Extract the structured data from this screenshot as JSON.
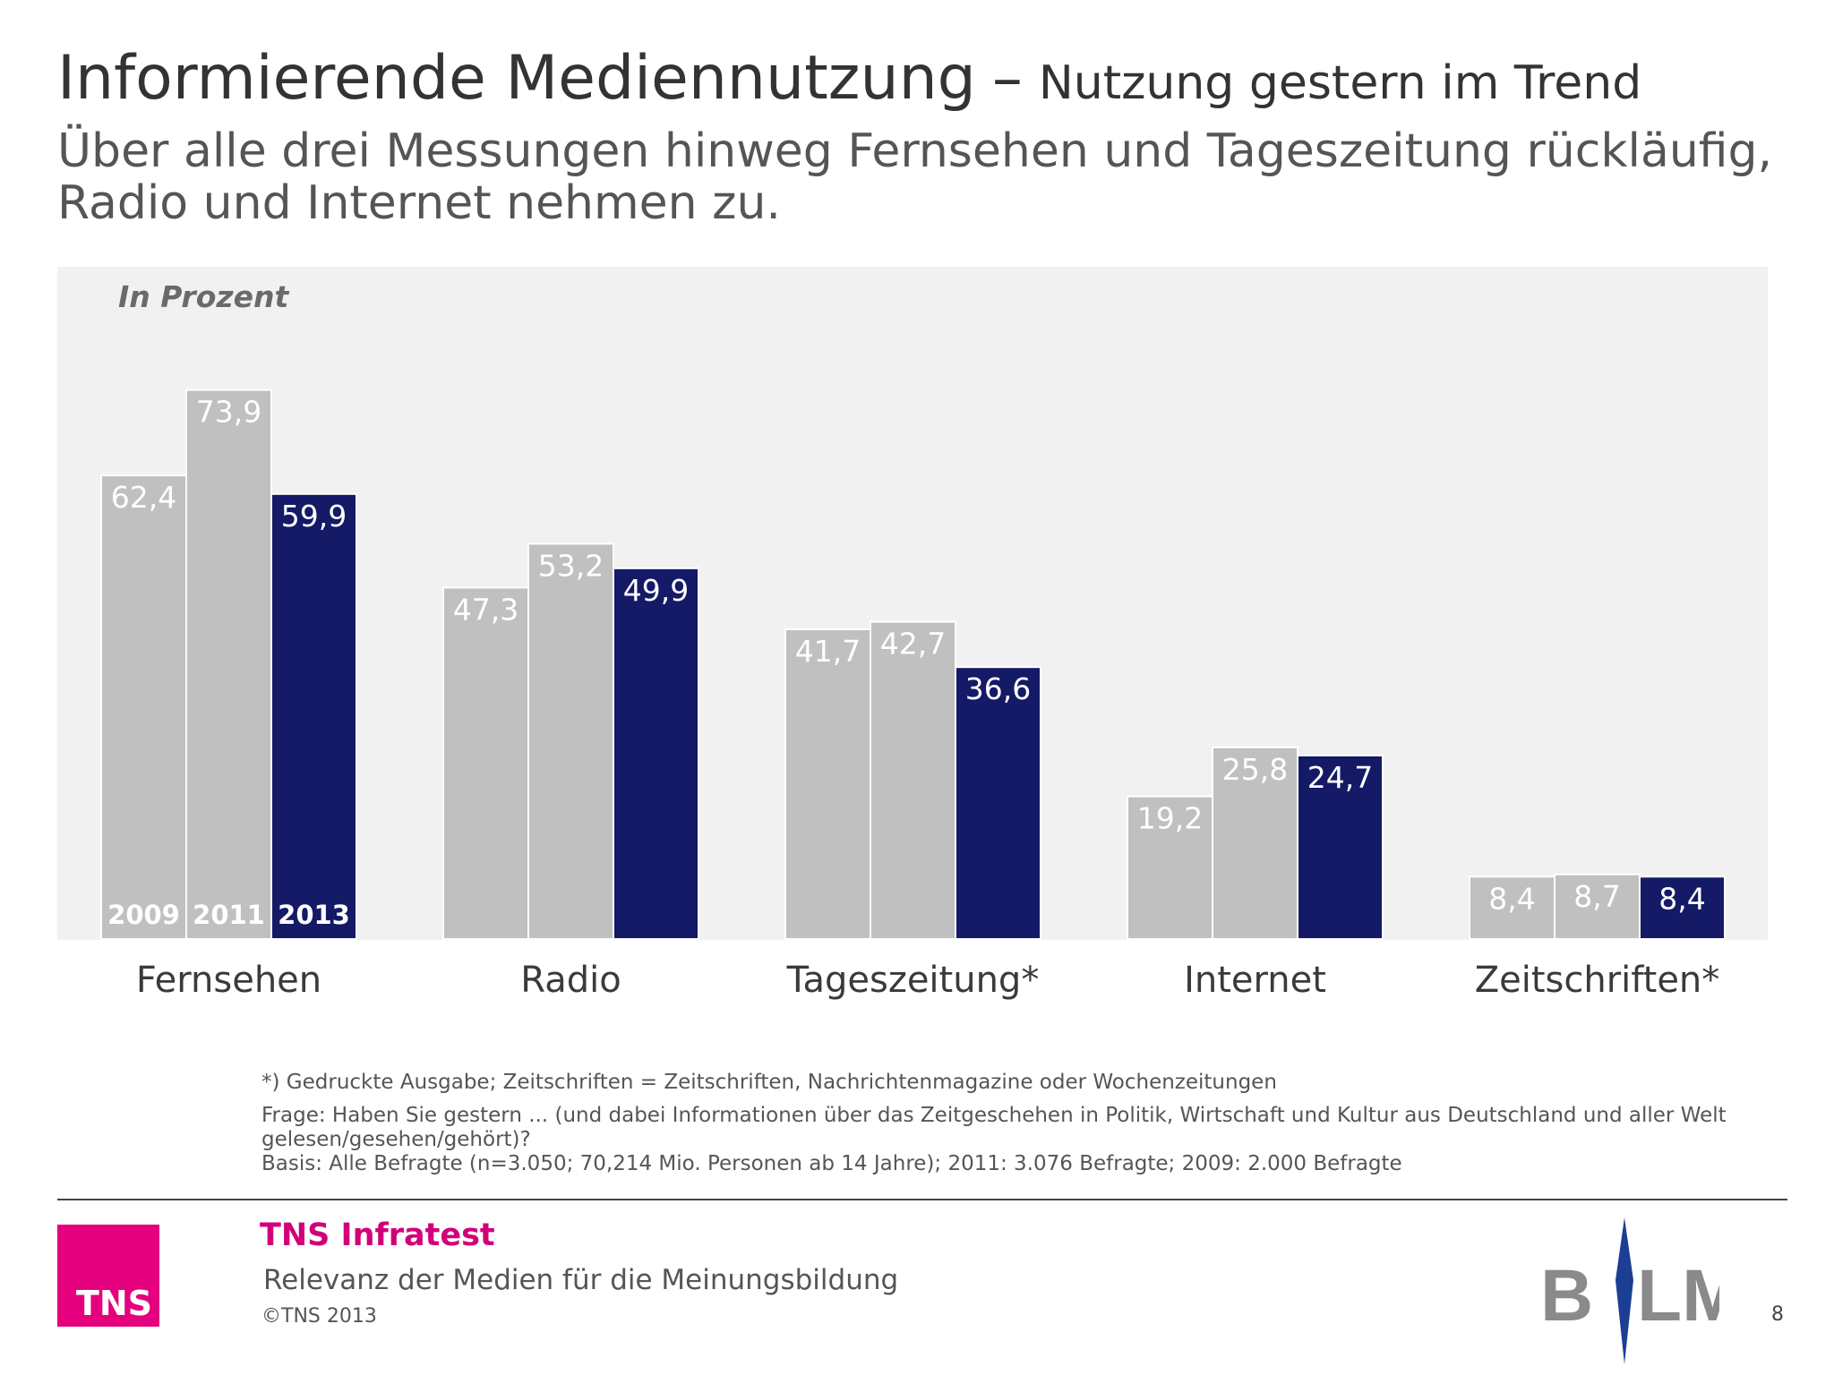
{
  "header": {
    "title": "Informierende Mediennutzung",
    "separator": "–",
    "title_sub": "Nutzung gestern im Trend",
    "subtitle": "Über alle drei Messungen hinweg Fernsehen und Tageszeitung rückläufig, Radio und Internet nehmen zu."
  },
  "chart_data": {
    "type": "bar",
    "unit_label": "In Prozent",
    "categories": [
      "Fernsehen",
      "Radio",
      "Tageszeitung*",
      "Internet",
      "Zeitschriften*"
    ],
    "series": [
      {
        "name": "2009",
        "values": [
          62.4,
          47.3,
          41.7,
          19.2,
          8.4
        ],
        "labels": [
          "62,4",
          "47,3",
          "41,7",
          "19,2",
          "8,4"
        ],
        "color": "#c0c0c0"
      },
      {
        "name": "2011",
        "values": [
          73.9,
          53.2,
          42.7,
          25.8,
          8.7
        ],
        "labels": [
          "73,9",
          "53,2",
          "42,7",
          "25,8",
          "8,7"
        ],
        "color": "#c0c0c0"
      },
      {
        "name": "2013",
        "values": [
          59.9,
          49.9,
          36.6,
          24.7,
          8.4
        ],
        "labels": [
          "59,9",
          "49,9",
          "36,6",
          "24,7",
          "8,4"
        ],
        "color": "#141a66"
      }
    ],
    "ylim": [
      0,
      100
    ],
    "grid": false,
    "legend": "inside first group bars, bottom"
  },
  "footnotes": {
    "note": "*) Gedruckte Ausgabe; Zeitschriften = Zeitschriften, Nachrichtenmagazine oder Wochenzeitungen",
    "question": "Frage: Haben Sie gestern ... (und dabei Informationen über das Zeitgeschehen in Politik, Wirtschaft und Kultur aus Deutschland und aller Welt gelesen/gesehen/gehört)?",
    "basis": "Basis: Alle Befragte (n=3.050; 70,214 Mio. Personen ab 14 Jahre); 2011: 3.076 Befragte; 2009: 2.000 Befragte"
  },
  "footer": {
    "logo_text": "TNS",
    "brand": "TNS Infratest",
    "study": "Relevanz der Medien für die Meinungsbildung",
    "copyright": "©TNS 2013",
    "partner_logo": "BLM",
    "page_number": "8"
  },
  "colors": {
    "accent_magenta": "#e5007e",
    "bar_grey": "#c0c0c0",
    "bar_navy": "#141a66",
    "plot_background": "#f1f1f1"
  }
}
